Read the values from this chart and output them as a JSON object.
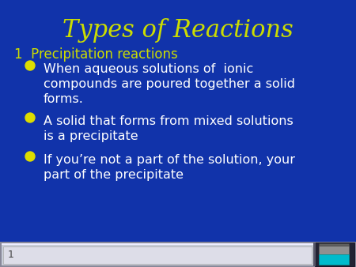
{
  "title": "Types of Reactions",
  "title_color": "#CCDD00",
  "title_fontsize": 22,
  "background_color": "#1133AA",
  "subtitle": "1  Precipitation reactions",
  "subtitle_color": "#CCDD00",
  "subtitle_fontsize": 12,
  "bullet_color": "#DDDD00",
  "text_color": "#FFFFFF",
  "bullet_fontsize": 11.5,
  "bullets": [
    "When aqueous solutions of  ionic\ncompounds are poured together a solid\nforms.",
    "A solid that forms from mixed solutions\nis a precipitate",
    "If you’re not a part of the solution, your\npart of the precipitate"
  ],
  "footer_number": "1",
  "figsize": [
    4.5,
    3.38
  ],
  "dpi": 100
}
